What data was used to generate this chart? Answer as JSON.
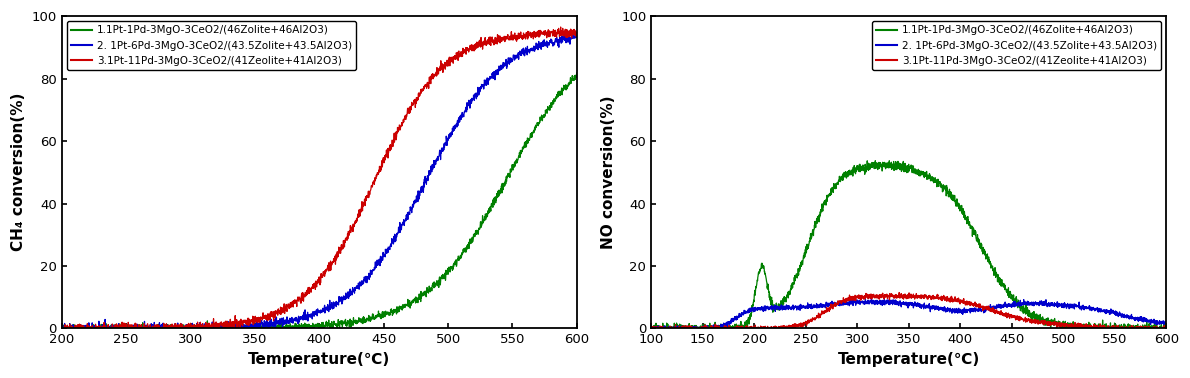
{
  "left": {
    "xlabel": "Temperature(℃)",
    "ylabel": "CH₄ conversion(%)",
    "xlim": [
      200,
      600
    ],
    "ylim": [
      0,
      100
    ],
    "xticks": [
      200,
      250,
      300,
      350,
      400,
      450,
      500,
      550,
      600
    ],
    "yticks": [
      0,
      20,
      40,
      60,
      80,
      100
    ],
    "legend": [
      "1.1Pt-1Pd-3MgO-3CeO2/(46Zolite+46Al2O3)",
      "2. 1Pt-6Pd-3MgO-3CeO2/(43.5Zolite+43.5Al2O3)",
      "3.1Pt-11Pd-3MgO-3CeO2/(41Zeolite+41Al2O3)"
    ],
    "colors": [
      "#008000",
      "#0000CC",
      "#CC0000"
    ],
    "green": {
      "x_mid": 545,
      "slope": 0.032,
      "ymax": 95
    },
    "blue": {
      "x_mid": 483,
      "slope": 0.034,
      "ymax": 95
    },
    "red": {
      "x_mid": 443,
      "slope": 0.038,
      "ymax": 95
    }
  },
  "right": {
    "xlabel": "Temperature(℃)",
    "ylabel": "NO conversion(%)",
    "xlim": [
      100,
      600
    ],
    "ylim": [
      0,
      100
    ],
    "xticks": [
      100,
      150,
      200,
      250,
      300,
      350,
      400,
      450,
      500,
      550,
      600
    ],
    "yticks": [
      0,
      20,
      40,
      60,
      80,
      100
    ],
    "legend": [
      "1.1Pt-1Pd-3MgO-3CeO2/(46Zolite+46Al2O3)",
      "2. 1Pt-6Pd-3MgO-3CeO2/(43.5Zolite+43.5Al2O3)",
      "3.1Pt-11Pd-3MgO-3CeO2/(41Zeolite+41Al2O3)"
    ],
    "colors": [
      "#008000",
      "#0000CC",
      "#CC0000"
    ]
  }
}
